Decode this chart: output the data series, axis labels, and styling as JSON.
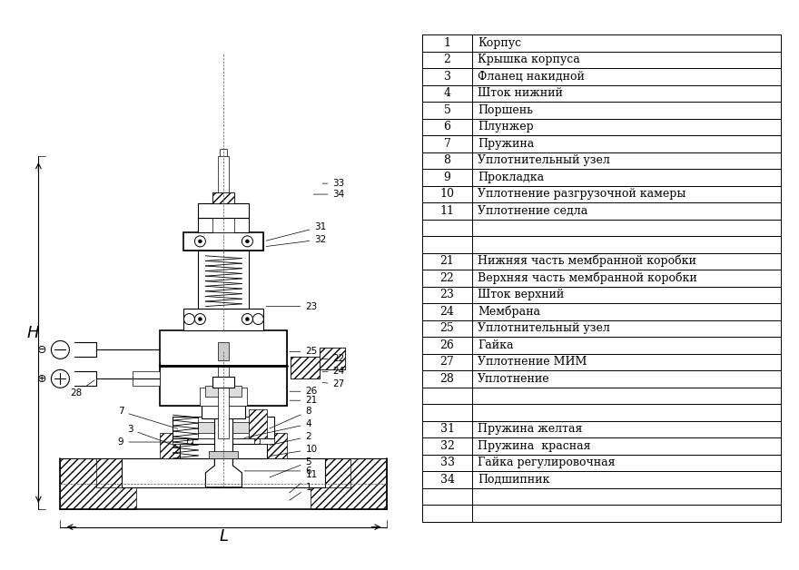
{
  "bg_color": "#ffffff",
  "table_rows": [
    [
      "1",
      "Корпус"
    ],
    [
      "2",
      "Крышка корпуса"
    ],
    [
      "3",
      "Фланец накидной"
    ],
    [
      "4",
      "Шток нижний"
    ],
    [
      "5",
      "Поршень"
    ],
    [
      "6",
      "Плунжер"
    ],
    [
      "7",
      "Пружина"
    ],
    [
      "8",
      "Уплотнительный узел"
    ],
    [
      "9",
      "Прокладка"
    ],
    [
      "10",
      "Уплотнение разгрузочной камеры"
    ],
    [
      "11",
      "Уплотнение седла"
    ],
    [
      "",
      ""
    ],
    [
      "",
      ""
    ],
    [
      "21",
      "Нижняя часть мембранной коробки"
    ],
    [
      "22",
      "Верхняя часть мембранной коробки"
    ],
    [
      "23",
      "Шток верхний"
    ],
    [
      "24",
      "Мембрана"
    ],
    [
      "25",
      "Уплотнительный узел"
    ],
    [
      "26",
      "Гайка"
    ],
    [
      "27",
      "Уплотнение МИМ"
    ],
    [
      "28",
      "Уплотнение"
    ],
    [
      "",
      ""
    ],
    [
      "",
      ""
    ],
    [
      "31",
      "Пружина желтая"
    ],
    [
      "32",
      "Пружина  красная"
    ],
    [
      "33",
      "Гайка регулировочная"
    ],
    [
      "34",
      "Подшипник"
    ],
    [
      "",
      ""
    ],
    [
      "",
      ""
    ]
  ],
  "font_size": 9,
  "line_color": "#000000",
  "text_color": "#000000"
}
